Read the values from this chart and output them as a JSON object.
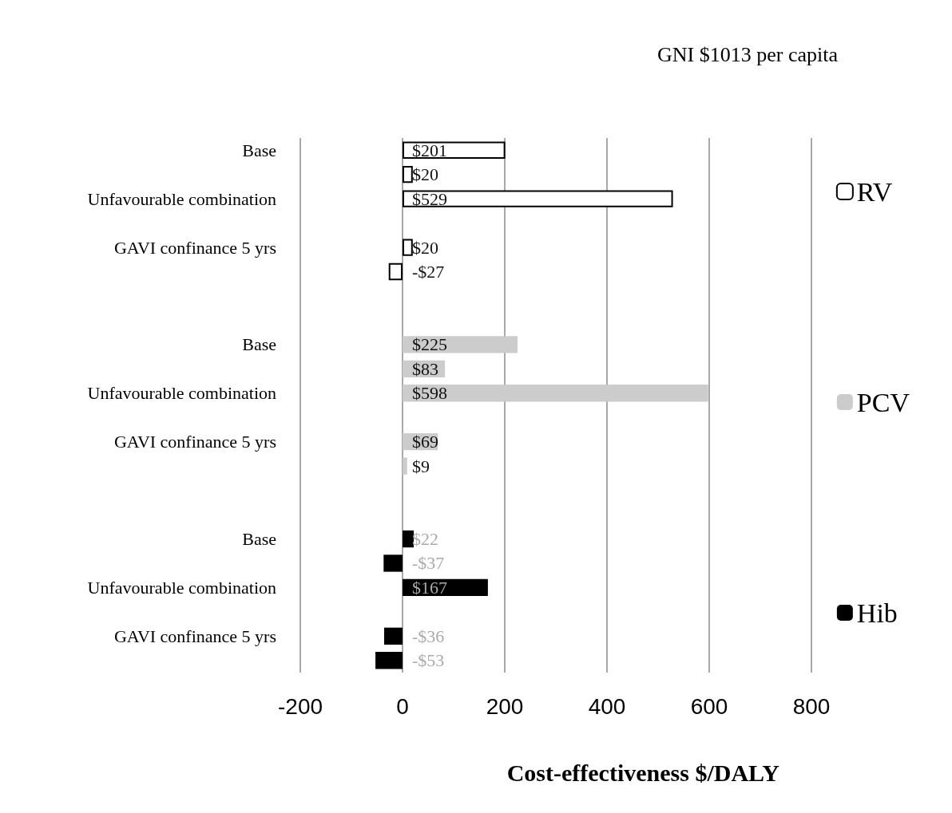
{
  "chart_data": {
    "type": "bar",
    "orientation": "horizontal",
    "title": "GNI $1013 per capita",
    "xlabel": "Cost-effectiveness $/DALY",
    "categories": [
      "Base",
      null,
      "Unfavourable combination",
      null,
      "GAVI confinance 5 yrs",
      null,
      null,
      null,
      "Base",
      null,
      "Unfavourable combination",
      null,
      "GAVI confinance 5 yrs",
      null,
      null,
      null,
      "Base",
      null,
      "Unfavourable combination",
      null,
      "GAVI confinance 5 yrs",
      null
    ],
    "series": [
      {
        "name": "RV",
        "color": "#ffffff",
        "values": [
          201,
          20,
          529,
          null,
          20,
          -27,
          null,
          null,
          null,
          null,
          null,
          null,
          null,
          null,
          null,
          null,
          null,
          null,
          null,
          null,
          null,
          null
        ],
        "value_labels": [
          "$201",
          "$20",
          "$529",
          null,
          "$20",
          "-$27",
          null,
          null,
          null,
          null,
          null,
          null,
          null,
          null,
          null,
          null,
          null,
          null,
          null,
          null,
          null,
          null
        ]
      },
      {
        "name": "PCV",
        "color": "#cccccc",
        "values": [
          null,
          null,
          null,
          null,
          null,
          null,
          null,
          null,
          225,
          83,
          598,
          null,
          69,
          9,
          null,
          null,
          null,
          null,
          null,
          null,
          null,
          null
        ],
        "value_labels": [
          null,
          null,
          null,
          null,
          null,
          null,
          null,
          null,
          "$225",
          "$83",
          "$598",
          null,
          "$69",
          "$9",
          null,
          null,
          null,
          null,
          null,
          null,
          null,
          null
        ]
      },
      {
        "name": "Hib",
        "color": "#000000",
        "values": [
          null,
          null,
          null,
          null,
          null,
          null,
          null,
          null,
          null,
          null,
          null,
          null,
          null,
          null,
          null,
          null,
          22,
          -37,
          167,
          null,
          -36,
          -53
        ],
        "value_labels": [
          null,
          null,
          null,
          null,
          null,
          null,
          null,
          null,
          null,
          null,
          null,
          null,
          null,
          null,
          null,
          null,
          "$22",
          "-$37",
          "$167",
          null,
          "-$36",
          "-$53"
        ]
      }
    ],
    "xlim": [
      -200,
      800
    ],
    "xticks": [
      -200,
      0,
      200,
      400,
      600,
      800
    ],
    "grid": "x",
    "legend": "right"
  }
}
